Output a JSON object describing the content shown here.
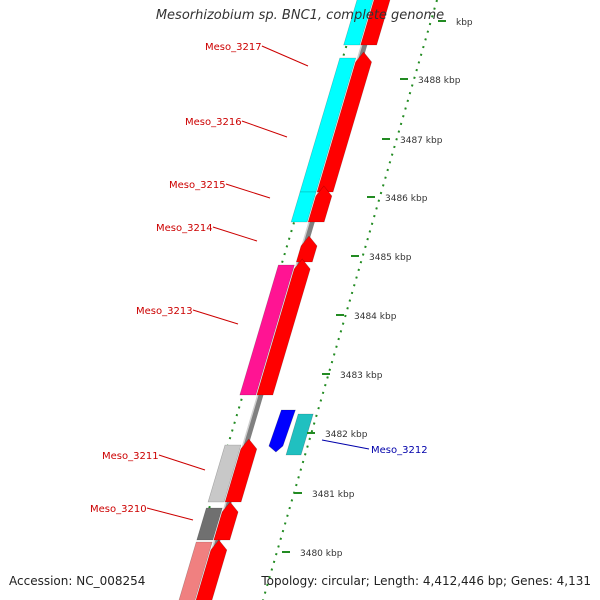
{
  "header": {
    "title": "Mesorhizobium sp. BNC1, complete genome"
  },
  "footer": {
    "accession": "Accession: NC_008254",
    "topology": "Topology: circular; Length: 4,412,446 bp; Genes: 4,131"
  },
  "scale": {
    "ticks": [
      "3480 kbp",
      "3481 kbp",
      "3482 kbp",
      "3483 kbp",
      "3484 kbp",
      "3485 kbp",
      "3486 kbp",
      "3487 kbp",
      "3488 kbp",
      "kbp"
    ]
  },
  "genes": [
    {
      "label": "Meso_3217",
      "color": "#00ffff",
      "cds_color": "#ff0000",
      "strand": "forward"
    },
    {
      "label": "Meso_3216",
      "color": "#00ffff",
      "cds_color": "#ff0000",
      "strand": "forward"
    },
    {
      "label": "Meso_3215",
      "color": "#00ffff",
      "cds_color": "#ff0000",
      "strand": "forward"
    },
    {
      "label": "Meso_3214",
      "color": "#ffffff",
      "cds_color": "#ff0000",
      "strand": "forward"
    },
    {
      "label": "Meso_3213",
      "color": "#ff1493",
      "cds_color": "#ff0000",
      "strand": "forward"
    },
    {
      "label": "Meso_3212",
      "color": "#20c0c0",
      "cds_color": "#0000ff",
      "strand": "reverse"
    },
    {
      "label": "Meso_3211",
      "color": "#c8c8c8",
      "cds_color": "#ff0000",
      "strand": "forward"
    },
    {
      "label": "Meso_3210",
      "color": "#707070",
      "cds_color": "#ff0000",
      "strand": "forward"
    }
  ],
  "colors": {
    "forward_label": "#cc0000",
    "reverse_label": "#0000aa",
    "backbone": "#808080",
    "tick": "#228b22"
  }
}
